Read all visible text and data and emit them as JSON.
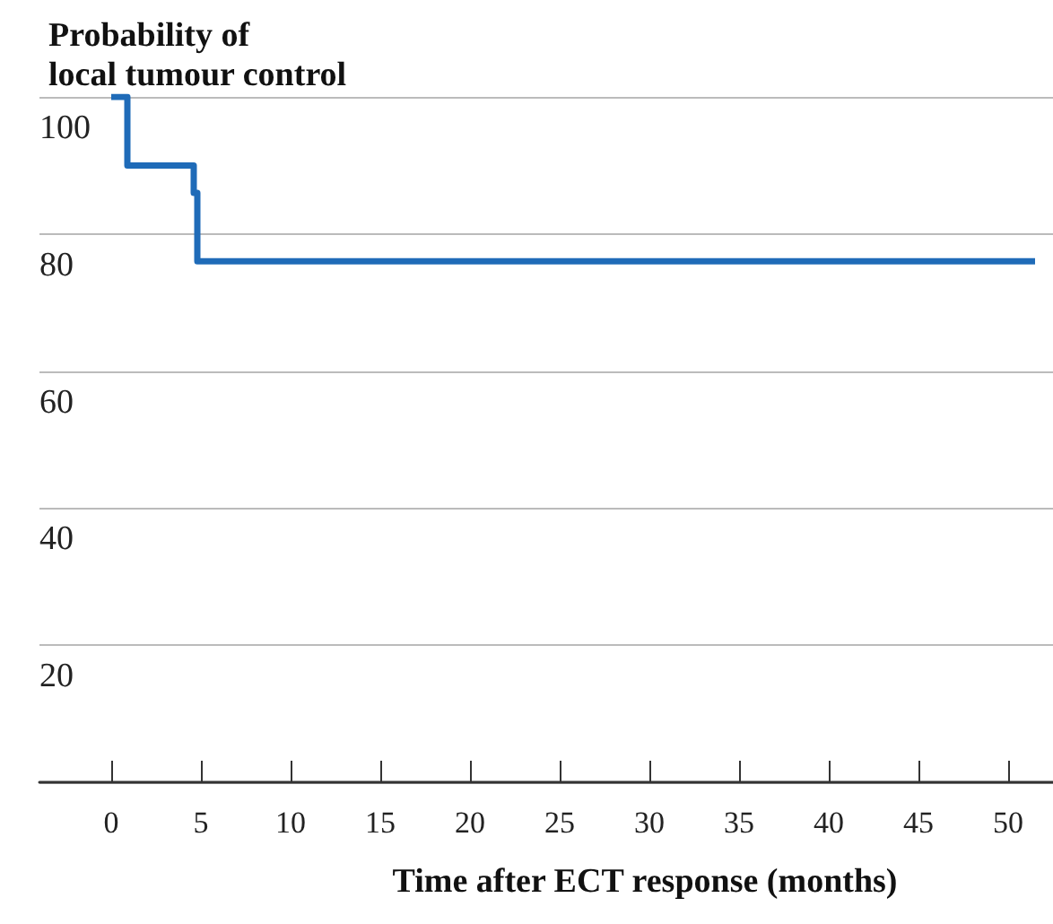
{
  "chart_data": {
    "type": "step",
    "ylabel": "Probability of\nlocal tumour control",
    "xlabel": "Time after ECT response (months)",
    "x": [
      0,
      0.9,
      4.6,
      4.8,
      51.5
    ],
    "series": [
      {
        "color": "#1f6bb8",
        "values": [
          100,
          90,
          86,
          76,
          76
        ]
      }
    ],
    "xlim": [
      -4,
      52.5
    ],
    "xticks": [
      0,
      5,
      10,
      15,
      20,
      25,
      30,
      35,
      40,
      45,
      50
    ],
    "ylim": [
      0,
      100
    ],
    "yticks": [
      20,
      40,
      60,
      80,
      100
    ],
    "grid": "y",
    "marker": "none",
    "line_style": "solid"
  }
}
